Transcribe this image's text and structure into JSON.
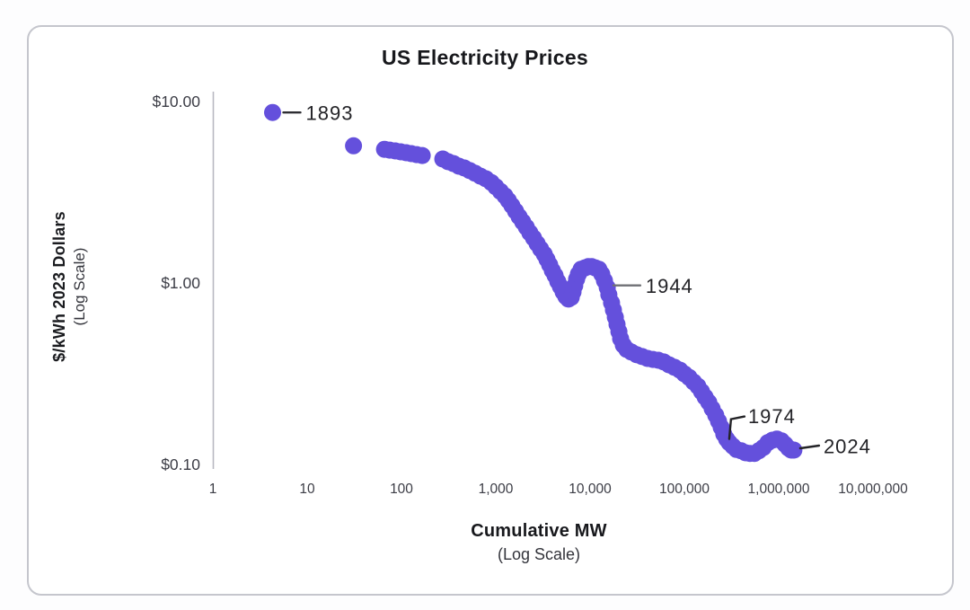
{
  "chart_data": {
    "type": "scatter",
    "title": "US Electricity Prices",
    "xlabel": "Cumulative MW",
    "xlabel_sub": "(Log Scale)",
    "ylabel": "$/kWh 2023 Dollars",
    "ylabel_sub": "(Log Scale)",
    "x_scale": "log",
    "y_scale": "log",
    "xlim": [
      1,
      10000000
    ],
    "ylim": [
      0.1,
      10
    ],
    "grid": false,
    "legend": "none",
    "point_color": "#6450dc",
    "axis_line_color": "#b7b8c2",
    "tick_color": "#3c3d46",
    "annotation_color": "#232327",
    "x_ticks": [
      {
        "label": "1",
        "value": 1
      },
      {
        "label": "10",
        "value": 10
      },
      {
        "label": "100",
        "value": 100
      },
      {
        "label": "1,000",
        "value": 1000
      },
      {
        "label": "10,000",
        "value": 10000
      },
      {
        "label": "100,000",
        "value": 100000
      },
      {
        "label": "1,000,000",
        "value": 1000000
      },
      {
        "label": "10,000,000",
        "value": 10000000
      }
    ],
    "y_ticks": [
      {
        "label": "$10.00",
        "value": 10
      },
      {
        "label": "$1.00",
        "value": 1
      },
      {
        "label": "$0.10",
        "value": 0.1
      }
    ],
    "series": [
      {
        "name": "US electricity price vs cumulative capacity",
        "points_format": [
          "cumulative_mw",
          "price_usd_per_kwh_2023"
        ],
        "points": [
          [
            4.3,
            8.7
          ],
          [
            31,
            5.7
          ],
          [
            66,
            5.45
          ],
          [
            75,
            5.4
          ],
          [
            86,
            5.34
          ],
          [
            98,
            5.28
          ],
          [
            112,
            5.22
          ],
          [
            127,
            5.16
          ],
          [
            145,
            5.1
          ],
          [
            166,
            5.04
          ],
          [
            274,
            4.82
          ],
          [
            313,
            4.66
          ],
          [
            357,
            4.55
          ],
          [
            407,
            4.4
          ],
          [
            464,
            4.3
          ],
          [
            530,
            4.16
          ],
          [
            604,
            4.02
          ],
          [
            689,
            3.88
          ],
          [
            786,
            3.75
          ],
          [
            896,
            3.58
          ],
          [
            1000,
            3.39
          ],
          [
            1120,
            3.2
          ],
          [
            1250,
            3.02
          ],
          [
            1360,
            2.85
          ],
          [
            1480,
            2.67
          ],
          [
            1620,
            2.49
          ],
          [
            1770,
            2.32
          ],
          [
            1930,
            2.17
          ],
          [
            2110,
            2.03
          ],
          [
            2300,
            1.89
          ],
          [
            2510,
            1.77
          ],
          [
            2740,
            1.65
          ],
          [
            2990,
            1.54
          ],
          [
            3270,
            1.44
          ],
          [
            3490,
            1.35
          ],
          [
            3730,
            1.26
          ],
          [
            3980,
            1.17
          ],
          [
            4250,
            1.1
          ],
          [
            4540,
            1.02
          ],
          [
            4850,
            0.955
          ],
          [
            5180,
            0.892
          ],
          [
            5530,
            0.843
          ],
          [
            5900,
            0.815
          ],
          [
            6310,
            0.833
          ],
          [
            6590,
            0.892
          ],
          [
            6880,
            0.966
          ],
          [
            7190,
            1.05
          ],
          [
            7520,
            1.12
          ],
          [
            8030,
            1.19
          ],
          [
            8770,
            1.21
          ],
          [
            9570,
            1.23
          ],
          [
            10400,
            1.23
          ],
          [
            11400,
            1.21
          ],
          [
            12400,
            1.19
          ],
          [
            13300,
            1.12
          ],
          [
            14200,
            1.03
          ],
          [
            15200,
            0.944
          ],
          [
            15800,
            0.862
          ],
          [
            16900,
            0.778
          ],
          [
            17700,
            0.71
          ],
          [
            18500,
            0.648
          ],
          [
            19300,
            0.592
          ],
          [
            20200,
            0.54
          ],
          [
            21100,
            0.493
          ],
          [
            22500,
            0.455
          ],
          [
            24500,
            0.43
          ],
          [
            27400,
            0.416
          ],
          [
            31300,
            0.402
          ],
          [
            35700,
            0.393
          ],
          [
            40700,
            0.384
          ],
          [
            46400,
            0.379
          ],
          [
            53000,
            0.375
          ],
          [
            60400,
            0.367
          ],
          [
            68900,
            0.354
          ],
          [
            78600,
            0.343
          ],
          [
            89600,
            0.331
          ],
          [
            100000,
            0.316
          ],
          [
            112000,
            0.302
          ],
          [
            125000,
            0.285
          ],
          [
            139000,
            0.27
          ],
          [
            152000,
            0.252
          ],
          [
            166000,
            0.235
          ],
          [
            181000,
            0.22
          ],
          [
            197000,
            0.203
          ],
          [
            215000,
            0.187
          ],
          [
            230000,
            0.173
          ],
          [
            246000,
            0.16
          ],
          [
            262000,
            0.147
          ],
          [
            280000,
            0.138
          ],
          [
            299000,
            0.132
          ],
          [
            327000,
            0.126
          ],
          [
            357000,
            0.121
          ],
          [
            398000,
            0.119
          ],
          [
            445000,
            0.116
          ],
          [
            496000,
            0.115
          ],
          [
            553000,
            0.115
          ],
          [
            617000,
            0.119
          ],
          [
            688000,
            0.124
          ],
          [
            769000,
            0.132
          ],
          [
            857000,
            0.136
          ],
          [
            957000,
            0.138
          ],
          [
            1070000,
            0.135
          ],
          [
            1170000,
            0.129
          ],
          [
            1270000,
            0.123
          ],
          [
            1360000,
            0.12
          ],
          [
            1450000,
            0.12
          ]
        ]
      }
    ],
    "annotations": [
      {
        "label": "1893",
        "mw": 4.3,
        "price": 8.7
      },
      {
        "label": "1944",
        "mw": 15800,
        "price": 0.97
      },
      {
        "label": "1974",
        "mw": 299000,
        "price": 0.132
      },
      {
        "label": "2024",
        "mw": 1450000,
        "price": 0.12
      }
    ]
  }
}
